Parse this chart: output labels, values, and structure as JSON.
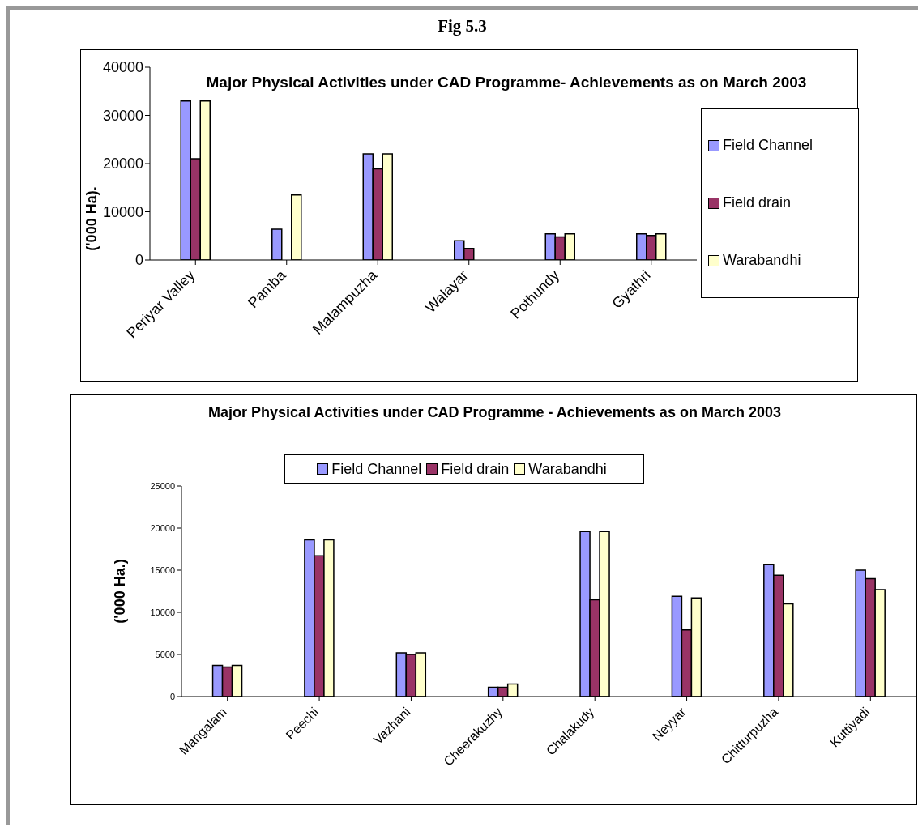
{
  "chart_data": [
    {
      "type": "bar",
      "title": "Major Physical Activities under CAD Programme- Achievements as on March 2003",
      "annotations": [
        "Fig 5.3"
      ],
      "ylabel": "('000 Ha).",
      "categories": [
        "Periyar Valley",
        "Pamba",
        "Malampuzha",
        "Walayar",
        "Pothundy",
        "Gyathri"
      ],
      "series": [
        {
          "name": "Field Channel",
          "color": "#9999ff",
          "values": [
            33000,
            6400,
            22000,
            4000,
            5400,
            5400
          ]
        },
        {
          "name": "Field drain",
          "color": "#993366",
          "values": [
            21000,
            null,
            18900,
            2400,
            4800,
            5100
          ]
        },
        {
          "name": "Warabandhi",
          "color": "#ffffcc",
          "values": [
            33000,
            13500,
            22000,
            null,
            5400,
            5400
          ]
        }
      ],
      "ylim": [
        0,
        40000
      ],
      "yticks": [
        0,
        10000,
        20000,
        30000,
        40000
      ],
      "grid": false,
      "legend": "right"
    },
    {
      "type": "bar",
      "title": "Major Physical Activities under CAD Programme - Achievements as on March 2003",
      "ylabel": "('000 Ha.)",
      "categories": [
        "Mangalam",
        "Peechi",
        "Vazhani",
        "Cheerakuzhy",
        "Chalakudy",
        "Neyyar",
        "Chitturpuzha",
        "Kuttiyadi"
      ],
      "series": [
        {
          "name": "Field Channel",
          "color": "#9999ff",
          "values": [
            3700,
            18600,
            5200,
            1100,
            19600,
            11900,
            15700,
            15000
          ]
        },
        {
          "name": "Field drain",
          "color": "#993366",
          "values": [
            3500,
            16700,
            5000,
            1100,
            11500,
            7900,
            14400,
            14000
          ]
        },
        {
          "name": "Warabandhi",
          "color": "#ffffcc",
          "values": [
            3700,
            18600,
            5200,
            1500,
            19600,
            11700,
            11000,
            12700
          ]
        }
      ],
      "ylim": [
        0,
        25000
      ],
      "yticks": [
        0,
        5000,
        10000,
        15000,
        20000,
        25000
      ],
      "grid": false,
      "legend": "top"
    }
  ]
}
